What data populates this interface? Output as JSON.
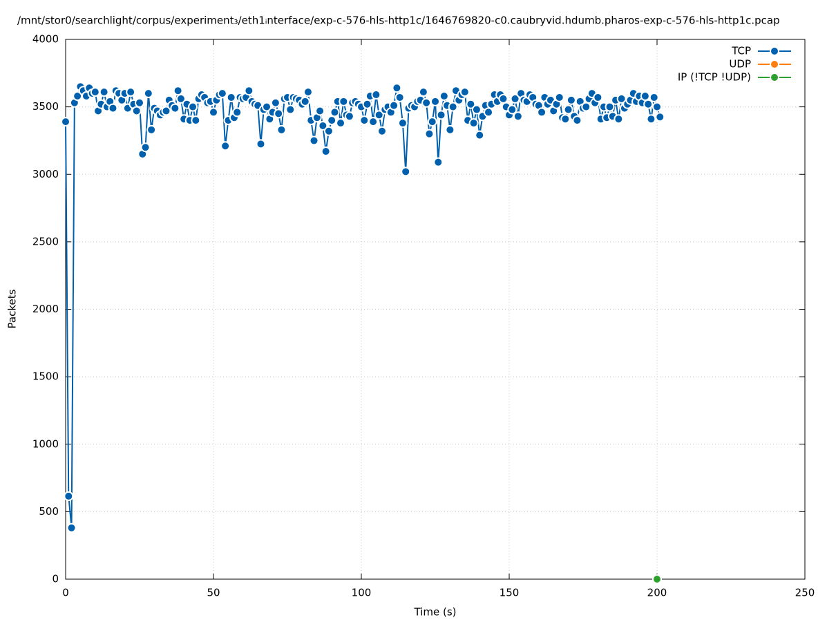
{
  "chart_data": {
    "type": "line",
    "title": "/mnt/stor0/searchlight/corpus/experiment₃/eth1ᵢnterface/exp-c-576-hls-http1c/1646769820-c0.caubryvid.hdumb.pharos-exp-c-576-hls-http1c.pcap",
    "x_label": "Time (s)",
    "y_label": "Packets",
    "xlim": [
      0,
      250
    ],
    "xticks": [
      0,
      50,
      100,
      150,
      200,
      250
    ],
    "ylim": [
      0,
      4000
    ],
    "yticks": [
      0,
      500,
      1000,
      1500,
      2000,
      2500,
      3000,
      3500,
      4000
    ],
    "grid": true,
    "legend": "top-right",
    "series": [
      {
        "name": "TCP",
        "color": "#0060ad",
        "x": [
          0,
          1,
          2,
          3,
          4,
          5,
          6,
          7,
          8,
          9,
          10,
          11,
          12,
          13,
          14,
          15,
          16,
          17,
          18,
          19,
          20,
          21,
          22,
          23,
          24,
          25,
          26,
          27,
          28,
          29,
          30,
          31,
          32,
          33,
          34,
          35,
          36,
          37,
          38,
          39,
          40,
          41,
          42,
          43,
          44,
          45,
          46,
          47,
          48,
          49,
          50,
          51,
          52,
          53,
          54,
          55,
          56,
          57,
          58,
          59,
          60,
          61,
          62,
          63,
          64,
          65,
          66,
          67,
          68,
          69,
          70,
          71,
          72,
          73,
          74,
          75,
          76,
          77,
          78,
          79,
          80,
          81,
          82,
          83,
          84,
          85,
          86,
          87,
          88,
          89,
          90,
          91,
          92,
          93,
          94,
          95,
          96,
          97,
          98,
          99,
          100,
          101,
          102,
          103,
          104,
          105,
          106,
          107,
          108,
          109,
          110,
          111,
          112,
          113,
          114,
          115,
          116,
          117,
          118,
          119,
          120,
          121,
          122,
          123,
          124,
          125,
          126,
          127,
          128,
          129,
          130,
          131,
          132,
          133,
          134,
          135,
          136,
          137,
          138,
          139,
          140,
          141,
          142,
          143,
          144,
          145,
          146,
          147,
          148,
          149,
          150,
          151,
          152,
          153,
          154,
          155,
          156,
          157,
          158,
          159,
          160,
          161,
          162,
          163,
          164,
          165,
          166,
          167,
          168,
          169,
          170,
          171,
          172,
          173,
          174,
          175,
          176,
          177,
          178,
          179,
          180,
          181,
          182,
          183,
          184,
          185,
          186,
          187,
          188,
          189,
          190,
          191,
          192,
          193,
          194,
          195,
          196,
          197,
          198,
          199,
          200,
          201
        ],
        "values": [
          3390,
          615,
          380,
          3530,
          3580,
          3650,
          3620,
          3580,
          3640,
          3600,
          3610,
          3470,
          3520,
          3610,
          3500,
          3540,
          3490,
          3620,
          3600,
          3550,
          3600,
          3490,
          3610,
          3520,
          3470,
          3530,
          3150,
          3200,
          3600,
          3330,
          3490,
          3470,
          3440,
          3460,
          3470,
          3550,
          3510,
          3490,
          3620,
          3560,
          3410,
          3520,
          3400,
          3500,
          3400,
          3560,
          3590,
          3570,
          3530,
          3540,
          3460,
          3550,
          3590,
          3600,
          3210,
          3400,
          3570,
          3420,
          3460,
          3570,
          3560,
          3570,
          3620,
          3540,
          3520,
          3510,
          3225,
          3480,
          3500,
          3410,
          3460,
          3530,
          3450,
          3330,
          3560,
          3570,
          3480,
          3570,
          3560,
          3550,
          3520,
          3540,
          3610,
          3400,
          3250,
          3420,
          3470,
          3360,
          3170,
          3320,
          3400,
          3460,
          3540,
          3380,
          3540,
          3440,
          3430,
          3530,
          3540,
          3520,
          3500,
          3400,
          3520,
          3580,
          3390,
          3590,
          3440,
          3320,
          3480,
          3500,
          3460,
          3510,
          3640,
          3570,
          3380,
          3020,
          3490,
          3510,
          3500,
          3540,
          3550,
          3610,
          3530,
          3300,
          3390,
          3540,
          3090,
          3440,
          3580,
          3510,
          3330,
          3500,
          3620,
          3550,
          3590,
          3610,
          3400,
          3520,
          3380,
          3480,
          3290,
          3430,
          3510,
          3460,
          3520,
          3590,
          3540,
          3590,
          3560,
          3500,
          3440,
          3480,
          3560,
          3430,
          3600,
          3550,
          3540,
          3590,
          3570,
          3520,
          3510,
          3460,
          3570,
          3520,
          3550,
          3470,
          3520,
          3570,
          3420,
          3410,
          3480,
          3550,
          3430,
          3400,
          3540,
          3490,
          3500,
          3560,
          3600,
          3530,
          3570,
          3410,
          3500,
          3420,
          3500,
          3430,
          3550,
          3410,
          3560,
          3490,
          3520,
          3550,
          3600,
          3540,
          3580,
          3530,
          3580,
          3520,
          3410,
          3570,
          3500,
          3425
        ]
      },
      {
        "name": "UDP",
        "color": "#ff7f0e",
        "x": [],
        "values": []
      },
      {
        "name": "IP (!TCP  !UDP)",
        "color": "#2ca02c",
        "x": [
          200
        ],
        "values": [
          0
        ]
      }
    ]
  }
}
